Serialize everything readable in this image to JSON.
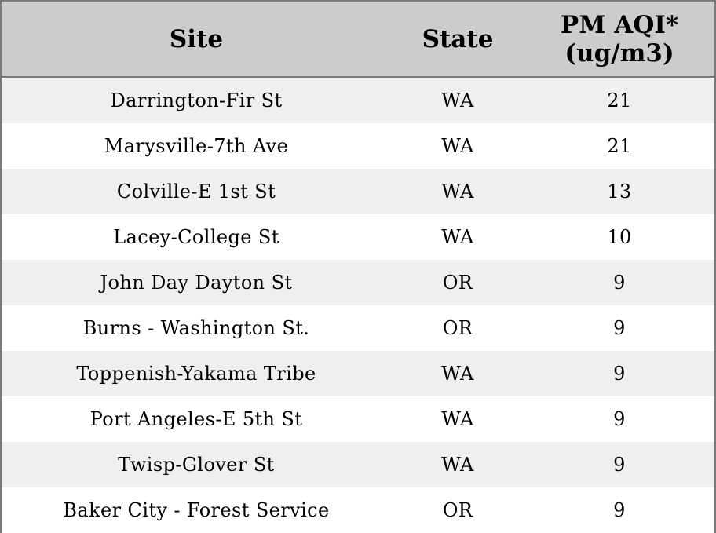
{
  "chart_data": {
    "type": "table",
    "columns": [
      "Site",
      "State",
      "PM AQI*\n(ug/m3)"
    ],
    "column_header_lines": [
      [
        "Site"
      ],
      [
        "State"
      ],
      [
        "PM AQI*",
        "(ug/m3)"
      ]
    ],
    "rows": [
      {
        "site": "Darrington-Fir St",
        "state": "WA",
        "pm_aqi": "21"
      },
      {
        "site": "Marysville-7th Ave",
        "state": "WA",
        "pm_aqi": "21"
      },
      {
        "site": "Colville-E 1st St",
        "state": "WA",
        "pm_aqi": "13"
      },
      {
        "site": "Lacey-College St",
        "state": "WA",
        "pm_aqi": "10"
      },
      {
        "site": "John Day Dayton St",
        "state": "OR",
        "pm_aqi": "9"
      },
      {
        "site": "Burns - Washington St.",
        "state": "OR",
        "pm_aqi": "9"
      },
      {
        "site": "Toppenish-Yakama Tribe",
        "state": "WA",
        "pm_aqi": "9"
      },
      {
        "site": "Port Angeles-E 5th St",
        "state": "WA",
        "pm_aqi": "9"
      },
      {
        "site": "Twisp-Glover St",
        "state": "WA",
        "pm_aqi": "9"
      },
      {
        "site": "Baker City - Forest Service",
        "state": "OR",
        "pm_aqi": "9"
      }
    ]
  },
  "colors": {
    "header_background": "#cccccc",
    "odd_row_background": "#efefef",
    "even_row_background": "#ffffff",
    "border": "#7a7a7a",
    "text": "#000000"
  }
}
